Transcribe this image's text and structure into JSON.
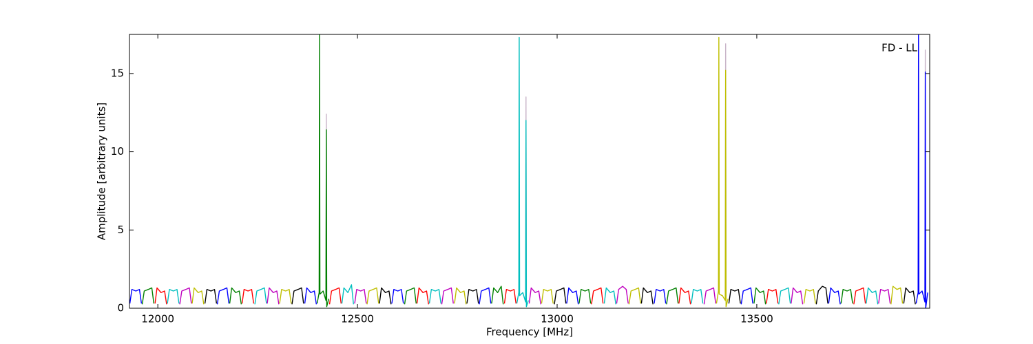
{
  "chart_data": {
    "type": "line",
    "annotation": "FD - LL",
    "xlabel": "Frequency [MHz]",
    "ylabel": "Amplitude [arbitrary units]",
    "xlim": [
      11929,
      13933
    ],
    "ylim": [
      0,
      17.5
    ],
    "xticks": [
      12000,
      12500,
      13000,
      13500
    ],
    "yticks": [
      0,
      5,
      10,
      15
    ],
    "series": [
      {
        "color": "#c8b4c8",
        "x": [
          12421,
          12422,
          12423,
          null,
          12921,
          12922,
          12923,
          null,
          13421,
          13422,
          13423,
          null,
          13921,
          13922,
          13923
        ],
        "values": [
          1,
          12.4,
          1,
          null,
          1,
          13.5,
          1,
          null,
          1,
          16.9,
          1,
          null,
          1,
          16.5,
          1
        ]
      },
      {
        "color": "#0000ff",
        "x": [
          11930,
          11935,
          11945,
          11954,
          11959
        ],
        "values": [
          0.3,
          1.2,
          1.1,
          1.2,
          0.3
        ]
      },
      {
        "color": "#008000",
        "x": [
          11961,
          11966,
          11976,
          11985,
          11990
        ],
        "values": [
          0.25,
          1.1,
          1.2,
          1.3,
          0.3
        ]
      },
      {
        "color": "#ff0000",
        "x": [
          11993,
          11998,
          12008,
          12017,
          12022
        ],
        "values": [
          0.3,
          1.3,
          1.0,
          1.1,
          0.25
        ]
      },
      {
        "color": "#00bfbf",
        "x": [
          12024,
          12029,
          12039,
          12048,
          12053
        ],
        "values": [
          0.3,
          1.2,
          1.1,
          1.2,
          0.3
        ]
      },
      {
        "color": "#bf00bf",
        "x": [
          12055,
          12060,
          12070,
          12079,
          12084
        ],
        "values": [
          0.25,
          1.1,
          1.2,
          1.3,
          0.3
        ]
      },
      {
        "color": "#bfbf00",
        "x": [
          12086,
          12091,
          12101,
          12110,
          12115
        ],
        "values": [
          0.3,
          1.3,
          1.0,
          1.1,
          0.25
        ]
      },
      {
        "color": "#000000",
        "x": [
          12118,
          12123,
          12133,
          12142,
          12147
        ],
        "values": [
          0.3,
          1.2,
          1.1,
          1.2,
          0.3
        ]
      },
      {
        "color": "#0000ff",
        "x": [
          12149,
          12154,
          12164,
          12173,
          12178
        ],
        "values": [
          0.25,
          1.1,
          1.2,
          1.3,
          0.3
        ]
      },
      {
        "color": "#008000",
        "x": [
          12180,
          12185,
          12195,
          12204,
          12209
        ],
        "values": [
          0.3,
          1.3,
          1.0,
          1.1,
          0.25
        ]
      },
      {
        "color": "#ff0000",
        "x": [
          12211,
          12216,
          12226,
          12235,
          12240
        ],
        "values": [
          0.3,
          1.2,
          1.1,
          1.2,
          0.3
        ]
      },
      {
        "color": "#00bfbf",
        "x": [
          12243,
          12248,
          12258,
          12267,
          12272
        ],
        "values": [
          0.25,
          1.1,
          1.2,
          1.3,
          0.3
        ]
      },
      {
        "color": "#bf00bf",
        "x": [
          12274,
          12279,
          12289,
          12298,
          12303
        ],
        "values": [
          0.3,
          1.3,
          1.0,
          1.1,
          0.25
        ]
      },
      {
        "color": "#bfbf00",
        "x": [
          12305,
          12310,
          12320,
          12329,
          12334
        ],
        "values": [
          0.3,
          1.2,
          1.1,
          1.2,
          0.3
        ]
      },
      {
        "color": "#000000",
        "x": [
          12336,
          12341,
          12351,
          12360,
          12365
        ],
        "values": [
          0.25,
          1.1,
          1.2,
          1.3,
          0.3
        ]
      },
      {
        "color": "#0000ff",
        "x": [
          12368,
          12373,
          12383,
          12392,
          12397
        ],
        "values": [
          0.3,
          1.3,
          1.0,
          1.1,
          0.25
        ]
      },
      {
        "color": "#008000",
        "x": [
          12399,
          12404,
          12405,
          12406,
          12414,
          12421,
          12422,
          12423,
          12428
        ],
        "values": [
          0.3,
          1.0,
          17.5,
          0.9,
          1.1,
          0.5,
          11.4,
          0.1,
          0.6
        ]
      },
      {
        "color": "#ff0000",
        "x": [
          12430,
          12435,
          12445,
          12454,
          12459
        ],
        "values": [
          0.25,
          1.1,
          1.2,
          1.3,
          0.3
        ]
      },
      {
        "color": "#00bfbf",
        "x": [
          12461,
          12466,
          12476,
          12485,
          12490
        ],
        "values": [
          0.3,
          1.3,
          1.0,
          1.5,
          0.25
        ]
      },
      {
        "color": "#bf00bf",
        "x": [
          12493,
          12498,
          12508,
          12517,
          12522
        ],
        "values": [
          0.3,
          1.2,
          1.1,
          1.2,
          0.3
        ]
      },
      {
        "color": "#bfbf00",
        "x": [
          12524,
          12529,
          12539,
          12548,
          12553
        ],
        "values": [
          0.25,
          1.1,
          1.2,
          1.3,
          0.3
        ]
      },
      {
        "color": "#000000",
        "x": [
          12555,
          12560,
          12570,
          12579,
          12584
        ],
        "values": [
          0.3,
          1.3,
          1.0,
          1.1,
          0.25
        ]
      },
      {
        "color": "#0000ff",
        "x": [
          12586,
          12591,
          12601,
          12610,
          12615
        ],
        "values": [
          0.3,
          1.2,
          1.1,
          1.2,
          0.3
        ]
      },
      {
        "color": "#008000",
        "x": [
          12618,
          12623,
          12633,
          12642,
          12647
        ],
        "values": [
          0.25,
          1.1,
          1.2,
          1.3,
          0.3
        ]
      },
      {
        "color": "#ff0000",
        "x": [
          12649,
          12654,
          12664,
          12673,
          12678
        ],
        "values": [
          0.3,
          1.3,
          1.0,
          1.1,
          0.25
        ]
      },
      {
        "color": "#00bfbf",
        "x": [
          12680,
          12685,
          12695,
          12704,
          12709
        ],
        "values": [
          0.3,
          1.2,
          1.1,
          1.2,
          0.3
        ]
      },
      {
        "color": "#bf00bf",
        "x": [
          12711,
          12716,
          12726,
          12735,
          12740
        ],
        "values": [
          0.25,
          1.1,
          1.2,
          1.3,
          0.3
        ]
      },
      {
        "color": "#bfbf00",
        "x": [
          12743,
          12748,
          12758,
          12767,
          12772
        ],
        "values": [
          0.3,
          1.3,
          1.0,
          1.1,
          0.25
        ]
      },
      {
        "color": "#000000",
        "x": [
          12774,
          12779,
          12789,
          12798,
          12803
        ],
        "values": [
          0.3,
          1.2,
          1.1,
          1.2,
          0.3
        ]
      },
      {
        "color": "#0000ff",
        "x": [
          12805,
          12810,
          12820,
          12829,
          12834
        ],
        "values": [
          0.25,
          1.1,
          1.2,
          1.3,
          0.3
        ]
      },
      {
        "color": "#008000",
        "x": [
          12836,
          12841,
          12851,
          12860,
          12865
        ],
        "values": [
          0.3,
          1.3,
          1.0,
          1.4,
          0.25
        ]
      },
      {
        "color": "#ff0000",
        "x": [
          12868,
          12873,
          12883,
          12892,
          12897
        ],
        "values": [
          0.3,
          1.2,
          1.1,
          1.2,
          0.3
        ]
      },
      {
        "color": "#00bfbf",
        "x": [
          12899,
          12904,
          12905,
          12906,
          12914,
          12921,
          12922,
          12923,
          12928
        ],
        "values": [
          0.3,
          1.0,
          17.3,
          0.8,
          1.0,
          0.4,
          12.0,
          0.1,
          0.5
        ]
      },
      {
        "color": "#bf00bf",
        "x": [
          12930,
          12935,
          12945,
          12954,
          12959
        ],
        "values": [
          0.3,
          1.3,
          1.0,
          1.1,
          0.25
        ]
      },
      {
        "color": "#bfbf00",
        "x": [
          12961,
          12966,
          12976,
          12985,
          12990
        ],
        "values": [
          0.3,
          1.2,
          1.1,
          1.2,
          0.3
        ]
      },
      {
        "color": "#000000",
        "x": [
          12993,
          12998,
          13008,
          13017,
          13022
        ],
        "values": [
          0.25,
          1.1,
          1.2,
          1.3,
          0.3
        ]
      },
      {
        "color": "#0000ff",
        "x": [
          13024,
          13029,
          13039,
          13048,
          13053
        ],
        "values": [
          0.3,
          1.3,
          1.0,
          1.1,
          0.25
        ]
      },
      {
        "color": "#008000",
        "x": [
          13055,
          13060,
          13070,
          13079,
          13084
        ],
        "values": [
          0.3,
          1.2,
          1.1,
          1.2,
          0.3
        ]
      },
      {
        "color": "#ff0000",
        "x": [
          13086,
          13091,
          13101,
          13110,
          13115
        ],
        "values": [
          0.25,
          1.1,
          1.2,
          1.3,
          0.3
        ]
      },
      {
        "color": "#00bfbf",
        "x": [
          13118,
          13123,
          13133,
          13142,
          13147
        ],
        "values": [
          0.3,
          1.3,
          1.0,
          1.1,
          0.25
        ]
      },
      {
        "color": "#bf00bf",
        "x": [
          13149,
          13154,
          13164,
          13173,
          13178
        ],
        "values": [
          0.3,
          1.2,
          1.4,
          1.2,
          0.3
        ]
      },
      {
        "color": "#bfbf00",
        "x": [
          13180,
          13185,
          13195,
          13204,
          13209
        ],
        "values": [
          0.25,
          1.1,
          1.2,
          1.3,
          0.3
        ]
      },
      {
        "color": "#000000",
        "x": [
          13211,
          13216,
          13226,
          13235,
          13240
        ],
        "values": [
          0.3,
          1.3,
          1.0,
          1.1,
          0.25
        ]
      },
      {
        "color": "#0000ff",
        "x": [
          13243,
          13248,
          13258,
          13267,
          13272
        ],
        "values": [
          0.3,
          1.2,
          1.1,
          1.2,
          0.3
        ]
      },
      {
        "color": "#008000",
        "x": [
          13274,
          13279,
          13289,
          13298,
          13303
        ],
        "values": [
          0.25,
          1.1,
          1.2,
          1.3,
          0.3
        ]
      },
      {
        "color": "#ff0000",
        "x": [
          13305,
          13310,
          13320,
          13329,
          13334
        ],
        "values": [
          0.3,
          1.3,
          1.0,
          1.1,
          0.25
        ]
      },
      {
        "color": "#00bfbf",
        "x": [
          13336,
          13341,
          13351,
          13360,
          13365
        ],
        "values": [
          0.3,
          1.2,
          1.1,
          1.2,
          0.3
        ]
      },
      {
        "color": "#bf00bf",
        "x": [
          13368,
          13373,
          13383,
          13392,
          13397
        ],
        "values": [
          0.25,
          1.1,
          1.2,
          1.3,
          0.3
        ]
      },
      {
        "color": "#bfbf00",
        "x": [
          13399,
          13404,
          13405,
          13406,
          13414,
          13421,
          13422,
          13423,
          13428
        ],
        "values": [
          0.3,
          1.1,
          17.3,
          0.9,
          0.8,
          0.5,
          15.2,
          0.1,
          0.6
        ]
      },
      {
        "color": "#000000",
        "x": [
          13430,
          13435,
          13445,
          13454,
          13459
        ],
        "values": [
          0.3,
          1.2,
          1.1,
          1.2,
          0.3
        ]
      },
      {
        "color": "#0000ff",
        "x": [
          13461,
          13466,
          13476,
          13485,
          13490
        ],
        "values": [
          0.25,
          1.1,
          1.2,
          1.3,
          0.3
        ]
      },
      {
        "color": "#008000",
        "x": [
          13493,
          13498,
          13508,
          13517,
          13522
        ],
        "values": [
          0.3,
          1.3,
          1.0,
          1.1,
          0.25
        ]
      },
      {
        "color": "#ff0000",
        "x": [
          13524,
          13529,
          13539,
          13548,
          13553
        ],
        "values": [
          0.3,
          1.2,
          1.1,
          1.2,
          0.3
        ]
      },
      {
        "color": "#00bfbf",
        "x": [
          13555,
          13560,
          13570,
          13579,
          13584
        ],
        "values": [
          0.25,
          1.1,
          1.2,
          1.3,
          0.3
        ]
      },
      {
        "color": "#bf00bf",
        "x": [
          13586,
          13591,
          13601,
          13610,
          13615
        ],
        "values": [
          0.3,
          1.3,
          1.0,
          1.1,
          0.25
        ]
      },
      {
        "color": "#bfbf00",
        "x": [
          13618,
          13623,
          13633,
          13642,
          13647
        ],
        "values": [
          0.3,
          1.2,
          1.1,
          1.2,
          0.3
        ]
      },
      {
        "color": "#000000",
        "x": [
          13649,
          13654,
          13664,
          13673,
          13678
        ],
        "values": [
          0.25,
          1.1,
          1.4,
          1.3,
          0.3
        ]
      },
      {
        "color": "#0000ff",
        "x": [
          13680,
          13685,
          13695,
          13704,
          13709
        ],
        "values": [
          0.3,
          1.3,
          1.0,
          1.1,
          0.25
        ]
      },
      {
        "color": "#008000",
        "x": [
          13711,
          13716,
          13726,
          13735,
          13740
        ],
        "values": [
          0.3,
          1.2,
          1.1,
          1.2,
          0.3
        ]
      },
      {
        "color": "#ff0000",
        "x": [
          13743,
          13748,
          13758,
          13767,
          13772
        ],
        "values": [
          0.25,
          1.1,
          1.2,
          1.3,
          0.3
        ]
      },
      {
        "color": "#00bfbf",
        "x": [
          13774,
          13779,
          13789,
          13798,
          13803
        ],
        "values": [
          0.3,
          1.3,
          1.0,
          1.1,
          0.25
        ]
      },
      {
        "color": "#bf00bf",
        "x": [
          13805,
          13810,
          13820,
          13829,
          13834
        ],
        "values": [
          0.3,
          1.2,
          1.1,
          1.2,
          0.3
        ]
      },
      {
        "color": "#bfbf00",
        "x": [
          13836,
          13841,
          13851,
          13860,
          13865
        ],
        "values": [
          0.25,
          1.4,
          1.2,
          1.3,
          0.3
        ]
      },
      {
        "color": "#000000",
        "x": [
          13868,
          13873,
          13883,
          13892,
          13897
        ],
        "values": [
          0.3,
          1.3,
          1.0,
          1.1,
          0.25
        ]
      },
      {
        "color": "#0000ff",
        "x": [
          13899,
          13904,
          13905,
          13906,
          13914,
          13921,
          13922,
          13923,
          13928
        ],
        "values": [
          0.3,
          1.0,
          17.5,
          0.9,
          1.1,
          0.4,
          15.1,
          0.0,
          1.0
        ]
      }
    ]
  }
}
